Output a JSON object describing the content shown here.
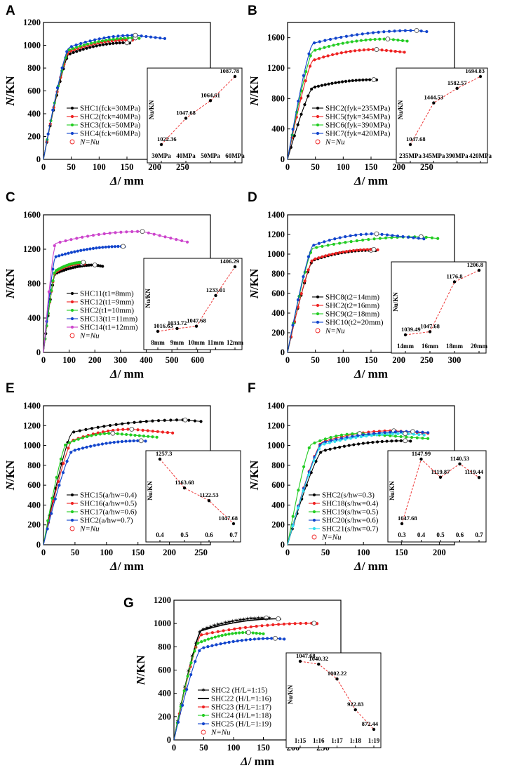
{
  "chart_data": [
    {
      "id": "A",
      "type": "line",
      "panel_label": "A",
      "xlabel": "Δ/ mm",
      "ylabel": "N/KN",
      "xlim": [
        0,
        300
      ],
      "ylim": [
        0,
        1200
      ],
      "xticks": [
        0,
        50,
        100,
        150,
        200,
        250
      ],
      "yticks": [
        0,
        200,
        400,
        600,
        800,
        1000,
        1200
      ],
      "series": [
        {
          "name": "SHC1(fck=30MPa)",
          "color": "#000000",
          "ymax": 1022.36,
          "xend": 155,
          "xpeak": 150
        },
        {
          "name": "SHC2(fck=40MPa)",
          "color": "#ee2222",
          "ymax": 1047.68,
          "xend": 160,
          "xpeak": 155
        },
        {
          "name": "SHC3(fck=50MPa)",
          "color": "#22cc22",
          "ymax": 1064.61,
          "xend": 172,
          "xpeak": 165
        },
        {
          "name": "SHC4(fck=60MPa)",
          "color": "#1144cc",
          "ymax": 1087.78,
          "xend": 218,
          "xpeak": 165
        }
      ],
      "legend_extra": "N=Nu",
      "inset": {
        "categories": [
          "30MPa",
          "40MPa",
          "50MPa",
          "60MPa"
        ],
        "values": [
          1022.36,
          1047.68,
          1064.61,
          1087.78
        ],
        "labels": [
          "1022.36",
          "1047.68",
          "1064.61",
          "1087.78"
        ],
        "ylabel": "Nu/KN"
      }
    },
    {
      "id": "B",
      "type": "line",
      "panel_label": "B",
      "xlabel": "Δ/ mm",
      "ylabel": "N/KN",
      "xlim": [
        0,
        300
      ],
      "ylim": [
        0,
        1800
      ],
      "xticks": [
        0,
        50,
        100,
        150,
        200,
        250
      ],
      "yticks": [
        0,
        400,
        800,
        1200,
        1600
      ],
      "series": [
        {
          "name": "SHC2(fyk=235MPa)",
          "color": "#000000",
          "ymax": 1047.68,
          "xend": 160,
          "xpeak": 155
        },
        {
          "name": "SHC5(fyk=345MPa)",
          "color": "#ee2222",
          "ymax": 1444.53,
          "xend": 210,
          "xpeak": 160
        },
        {
          "name": "SHC6(fyk=390MPa)",
          "color": "#22cc22",
          "ymax": 1582.57,
          "xend": 215,
          "xpeak": 180
        },
        {
          "name": "SHC7(fyk=420MPa)",
          "color": "#1144cc",
          "ymax": 1694.83,
          "xend": 250,
          "xpeak": 232
        }
      ],
      "legend_extra": "N=Nu",
      "inset": {
        "categories": [
          "235MPa",
          "345MPa",
          "390MPa",
          "420MPa"
        ],
        "values": [
          1047.68,
          1444.53,
          1582.57,
          1694.83
        ],
        "labels": [
          "1047.68",
          "1444.53",
          "1582.57",
          "1694.83"
        ],
        "ylabel": "Nu/KN"
      }
    },
    {
      "id": "C",
      "type": "line",
      "panel_label": "C",
      "xlabel": "Δ/ mm",
      "ylabel": "N/KN",
      "xlim": [
        0,
        650
      ],
      "ylim": [
        0,
        1600
      ],
      "xticks": [
        0,
        100,
        200,
        300,
        400,
        500,
        600
      ],
      "yticks": [
        0,
        400,
        800,
        1200,
        1600
      ],
      "series": [
        {
          "name": "SHC11(t1=8mm)",
          "color": "#000000",
          "ymax": 1016.63,
          "xend": 230,
          "xpeak": 200
        },
        {
          "name": "SHC12(t1=9mm)",
          "color": "#ee2222",
          "ymax": 1033.72,
          "xend": 160,
          "xpeak": 150
        },
        {
          "name": "SHC2(t1=10mm)",
          "color": "#22cc22",
          "ymax": 1047.68,
          "xend": 160,
          "xpeak": 155
        },
        {
          "name": "SHC13(t1=11mm)",
          "color": "#1144cc",
          "ymax": 1233.01,
          "xend": 315,
          "xpeak": 310
        },
        {
          "name": "SHC14(t1=12mm)",
          "color": "#cc44cc",
          "ymax": 1406.29,
          "xend": 560,
          "xpeak": 385
        }
      ],
      "legend_extra": "N=Nu",
      "inset": {
        "categories": [
          "8mm",
          "9mm",
          "10mm",
          "11mm",
          "12mm"
        ],
        "values": [
          1016.63,
          1033.72,
          1047.68,
          1233.01,
          1406.29
        ],
        "labels": [
          "1016.63",
          "1033.72",
          "1047.68",
          "1233.01",
          "1406.29"
        ],
        "ylabel": "Nu/KN"
      }
    },
    {
      "id": "D",
      "type": "line",
      "panel_label": "D",
      "xlabel": "Δ/ mm",
      "ylabel": "N/KN",
      "xlim": [
        0,
        300
      ],
      "ylim": [
        0,
        1400
      ],
      "xticks": [
        0,
        50,
        100,
        150,
        200,
        250,
        300
      ],
      "yticks": [
        0,
        200,
        400,
        600,
        800,
        1000,
        1200,
        1400
      ],
      "series": [
        {
          "name": "SHC8(t2=14mm)",
          "color": "#000000",
          "ymax": 1039.49,
          "xend": 158,
          "xpeak": 150
        },
        {
          "name": "SHC2(t2=16mm)",
          "color": "#ee2222",
          "ymax": 1047.68,
          "xend": 162,
          "xpeak": 155
        },
        {
          "name": "SHC9(t2=18mm)",
          "color": "#22cc22",
          "ymax": 1176.8,
          "xend": 270,
          "xpeak": 240
        },
        {
          "name": "SHC10(t2=20mm)",
          "color": "#1144cc",
          "ymax": 1206.8,
          "xend": 245,
          "xpeak": 160
        }
      ],
      "legend_extra": "N=Nu",
      "inset": {
        "categories": [
          "14mm",
          "16mm",
          "18mm",
          "20mm"
        ],
        "values": [
          1039.49,
          1047.68,
          1176.8,
          1206.8
        ],
        "labels": [
          "1039.49",
          "1047.68",
          "1176.8",
          "1206.8"
        ],
        "ylabel": "Nu/KN"
      }
    },
    {
      "id": "E",
      "type": "line",
      "panel_label": "E",
      "xlabel": "Δ/ mm",
      "ylabel": "N/KN",
      "xlim": [
        0,
        265
      ],
      "ylim": [
        0,
        1400
      ],
      "xticks": [
        0,
        50,
        100,
        150,
        200,
        250
      ],
      "yticks": [
        0,
        200,
        400,
        600,
        800,
        1000,
        1200,
        1400
      ],
      "series": [
        {
          "name": "SHC15(a/hw=0.4)",
          "color": "#000000",
          "ymax": 1257.3,
          "xend": 250,
          "xpeak": 225
        },
        {
          "name": "SHC16(a/hw=0.5)",
          "color": "#ee2222",
          "ymax": 1163.68,
          "xend": 205,
          "xpeak": 140
        },
        {
          "name": "SHC17(a/hw=0.6)",
          "color": "#22cc22",
          "ymax": 1122.53,
          "xend": 180,
          "xpeak": 110
        },
        {
          "name": "SHC2(a/hw=0.7)",
          "color": "#1144cc",
          "ymax": 1047.68,
          "xend": 162,
          "xpeak": 155
        }
      ],
      "legend_extra": "N=Nu",
      "inset": {
        "categories": [
          "0.4",
          "0.5",
          "0.6",
          "0.7"
        ],
        "values": [
          1257.3,
          1163.68,
          1122.53,
          1047.68
        ],
        "labels": [
          "1257.3",
          "1163.68",
          "1122.53",
          "1047.68"
        ],
        "ylabel": "Nu/KN"
      }
    },
    {
      "id": "F",
      "type": "line",
      "panel_label": "F",
      "xlabel": "Δ/ mm",
      "ylabel": "N/KN",
      "xlim": [
        0,
        220
      ],
      "ylim": [
        0,
        1400
      ],
      "xticks": [
        0,
        50,
        100,
        150,
        200
      ],
      "yticks": [
        0,
        200,
        400,
        600,
        800,
        1000,
        1200,
        1400
      ],
      "series": [
        {
          "name": "SHC2(s/hw=0.3)",
          "color": "#000000",
          "ymax": 1047.68,
          "xend": 162,
          "xpeak": 155
        },
        {
          "name": "SHC18(s/hw=0.4)",
          "color": "#ee2222",
          "ymax": 1147.99,
          "xend": 185,
          "xpeak": 140
        },
        {
          "name": "SHC19(s/hw=0.5)",
          "color": "#22cc22",
          "ymax": 1119.87,
          "xend": 185,
          "xpeak": 95
        },
        {
          "name": "SHC20(s/hw=0.6)",
          "color": "#1144cc",
          "ymax": 1140.53,
          "xend": 185,
          "xpeak": 165
        },
        {
          "name": "SHC21(s/hw=0.7)",
          "color": "#33ddee",
          "ymax": 1119.44,
          "xend": 180,
          "xpeak": 155
        }
      ],
      "legend_extra": "N=Nu",
      "inset": {
        "categories": [
          "0.3",
          "0.4",
          "0.5",
          "0.6",
          "0.7"
        ],
        "values": [
          1047.68,
          1147.99,
          1119.87,
          1140.53,
          1119.44
        ],
        "labels": [
          "1047.68",
          "1147.99",
          "1119.87",
          "1140.53",
          "1119.44"
        ],
        "ylabel": "Nu/KN"
      }
    },
    {
      "id": "G",
      "type": "line",
      "panel_label": "G",
      "xlabel": "Δ/ mm",
      "ylabel": "N/KN",
      "xlim": [
        0,
        280
      ],
      "ylim": [
        0,
        1200
      ],
      "xticks": [
        0,
        50,
        100,
        150,
        200,
        250
      ],
      "yticks": [
        0,
        200,
        400,
        600,
        800,
        1000,
        1200
      ],
      "series": [
        {
          "name": "SHC2 (H/L=1:15)",
          "color": "#000000",
          "ymax": 1047.68,
          "xend": 160,
          "xpeak": 155,
          "marker": "star"
        },
        {
          "name": "SHC22 (H/L=1:16)",
          "color": "#000000",
          "ymax": 1040.32,
          "xend": 180,
          "xpeak": 175,
          "marker": "none"
        },
        {
          "name": "SHC23 (H/L=1:17)",
          "color": "#ee2222",
          "ymax": 1002.22,
          "xend": 240,
          "xpeak": 235
        },
        {
          "name": "SHC24 (H/L=1:18)",
          "color": "#22cc22",
          "ymax": 922.83,
          "xend": 150,
          "xpeak": 125
        },
        {
          "name": "SHC25 (H/L=1:19)",
          "color": "#1144cc",
          "ymax": 872.44,
          "xend": 185,
          "xpeak": 170
        }
      ],
      "legend_extra": "N=Nu",
      "inset": {
        "categories": [
          "1:15",
          "1:16",
          "1:17",
          "1:18",
          "1:19"
        ],
        "values": [
          1047.68,
          1040.32,
          1002.22,
          922.83,
          872.44
        ],
        "labels": [
          "1047.68",
          "1040.32",
          "1002.22",
          "922.83",
          "872.44"
        ],
        "ylabel": "Nu/KN"
      }
    }
  ]
}
